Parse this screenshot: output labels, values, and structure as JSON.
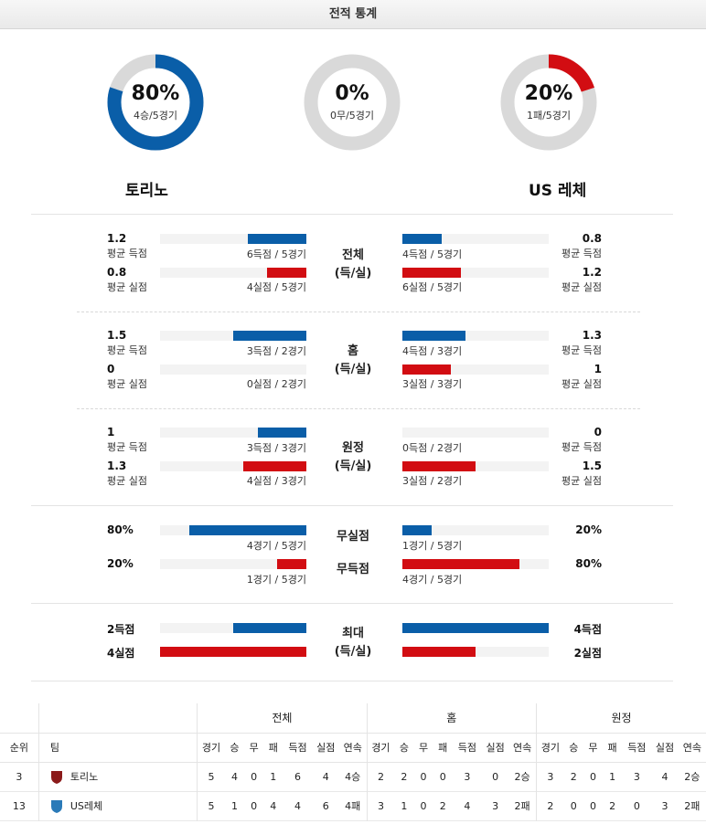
{
  "title": "전적 통계",
  "colors": {
    "blue": "#0a5ea8",
    "red": "#d20d12",
    "gray": "#d9d9d9"
  },
  "summary": [
    {
      "pct": "80%",
      "sub": "4승/5경기",
      "fraction": 0.8,
      "color": "#0a5ea8"
    },
    {
      "pct": "0%",
      "sub": "0무/5경기",
      "fraction": 0,
      "color": "#d9d9d9"
    },
    {
      "pct": "20%",
      "sub": "1패/5경기",
      "fraction": 0.2,
      "color": "#d20d12"
    }
  ],
  "teams": {
    "home": "토리노",
    "away": "US 레체"
  },
  "sections": {
    "overall": {
      "title_line1": "전체",
      "title_line2": "(득/실)",
      "home": [
        {
          "value": "1.2",
          "label": "평균 득점",
          "caption": "6득점 / 5경기",
          "fraction": 0.4
        },
        {
          "value": "0.8",
          "label": "평균 실점",
          "caption": "4실점 / 5경기",
          "fraction": 0.27
        }
      ],
      "away": [
        {
          "value": "0.8",
          "label": "평균 득점",
          "caption": "4득점 / 5경기",
          "fraction": 0.27
        },
        {
          "value": "1.2",
          "label": "평균 실점",
          "caption": "6실점 / 5경기",
          "fraction": 0.4
        }
      ]
    },
    "home_games": {
      "title_line1": "홈",
      "title_line2": "(득/실)",
      "home": [
        {
          "value": "1.5",
          "label": "평균 득점",
          "caption": "3득점 / 2경기",
          "fraction": 0.5
        },
        {
          "value": "0",
          "label": "평균 실점",
          "caption": "0실점 / 2경기",
          "fraction": 0
        }
      ],
      "away": [
        {
          "value": "1.3",
          "label": "평균 득점",
          "caption": "4득점 / 3경기",
          "fraction": 0.43
        },
        {
          "value": "1",
          "label": "평균 실점",
          "caption": "3실점 / 3경기",
          "fraction": 0.33
        }
      ]
    },
    "away_games": {
      "title_line1": "원정",
      "title_line2": "(득/실)",
      "home": [
        {
          "value": "1",
          "label": "평균 득점",
          "caption": "3득점 / 3경기",
          "fraction": 0.33
        },
        {
          "value": "1.3",
          "label": "평균 실점",
          "caption": "4실점 / 3경기",
          "fraction": 0.43
        }
      ],
      "away": [
        {
          "value": "0",
          "label": "평균 득점",
          "caption": "0득점 / 2경기",
          "fraction": 0
        },
        {
          "value": "1.5",
          "label": "평균 실점",
          "caption": "3실점 / 2경기",
          "fraction": 0.5
        }
      ]
    },
    "clean": {
      "clean_sheet_label": "무실점",
      "no_score_label": "무득점",
      "home": [
        {
          "value": "80%",
          "caption": "4경기 / 5경기",
          "fraction": 0.8
        },
        {
          "value": "20%",
          "caption": "1경기 / 5경기",
          "fraction": 0.2
        }
      ],
      "away": [
        {
          "value": "20%",
          "caption": "1경기 / 5경기",
          "fraction": 0.2
        },
        {
          "value": "80%",
          "caption": "4경기 / 5경기",
          "fraction": 0.8
        }
      ]
    },
    "max": {
      "title_line1": "최대",
      "title_line2": "(득/실)",
      "home": [
        {
          "value": "2득점",
          "fraction": 0.5
        },
        {
          "value": "4실점",
          "fraction": 1.0
        }
      ],
      "away": [
        {
          "value": "4득점",
          "fraction": 1.0
        },
        {
          "value": "2실점",
          "fraction": 0.5
        }
      ]
    }
  },
  "standings": {
    "group_headers": {
      "overall": "전체",
      "home": "홈",
      "away": "원정"
    },
    "col_rank": "순위",
    "col_team": "팀",
    "cols": [
      "경기",
      "승",
      "무",
      "패",
      "득점",
      "실점",
      "연속"
    ],
    "rows": [
      {
        "rank": "3",
        "team": "토리노",
        "badge_color": "#8b1a1a",
        "overall": [
          "5",
          "4",
          "0",
          "1",
          "6",
          "4",
          "4승"
        ],
        "home": [
          "2",
          "2",
          "0",
          "0",
          "3",
          "0",
          "2승"
        ],
        "away": [
          "3",
          "2",
          "0",
          "1",
          "3",
          "4",
          "2승"
        ]
      },
      {
        "rank": "13",
        "team": "US레체",
        "badge_color": "#2a7ab8",
        "overall": [
          "5",
          "1",
          "0",
          "4",
          "4",
          "6",
          "4패"
        ],
        "home": [
          "3",
          "1",
          "0",
          "2",
          "4",
          "3",
          "2패"
        ],
        "away": [
          "2",
          "0",
          "0",
          "2",
          "0",
          "3",
          "2패"
        ]
      }
    ]
  }
}
